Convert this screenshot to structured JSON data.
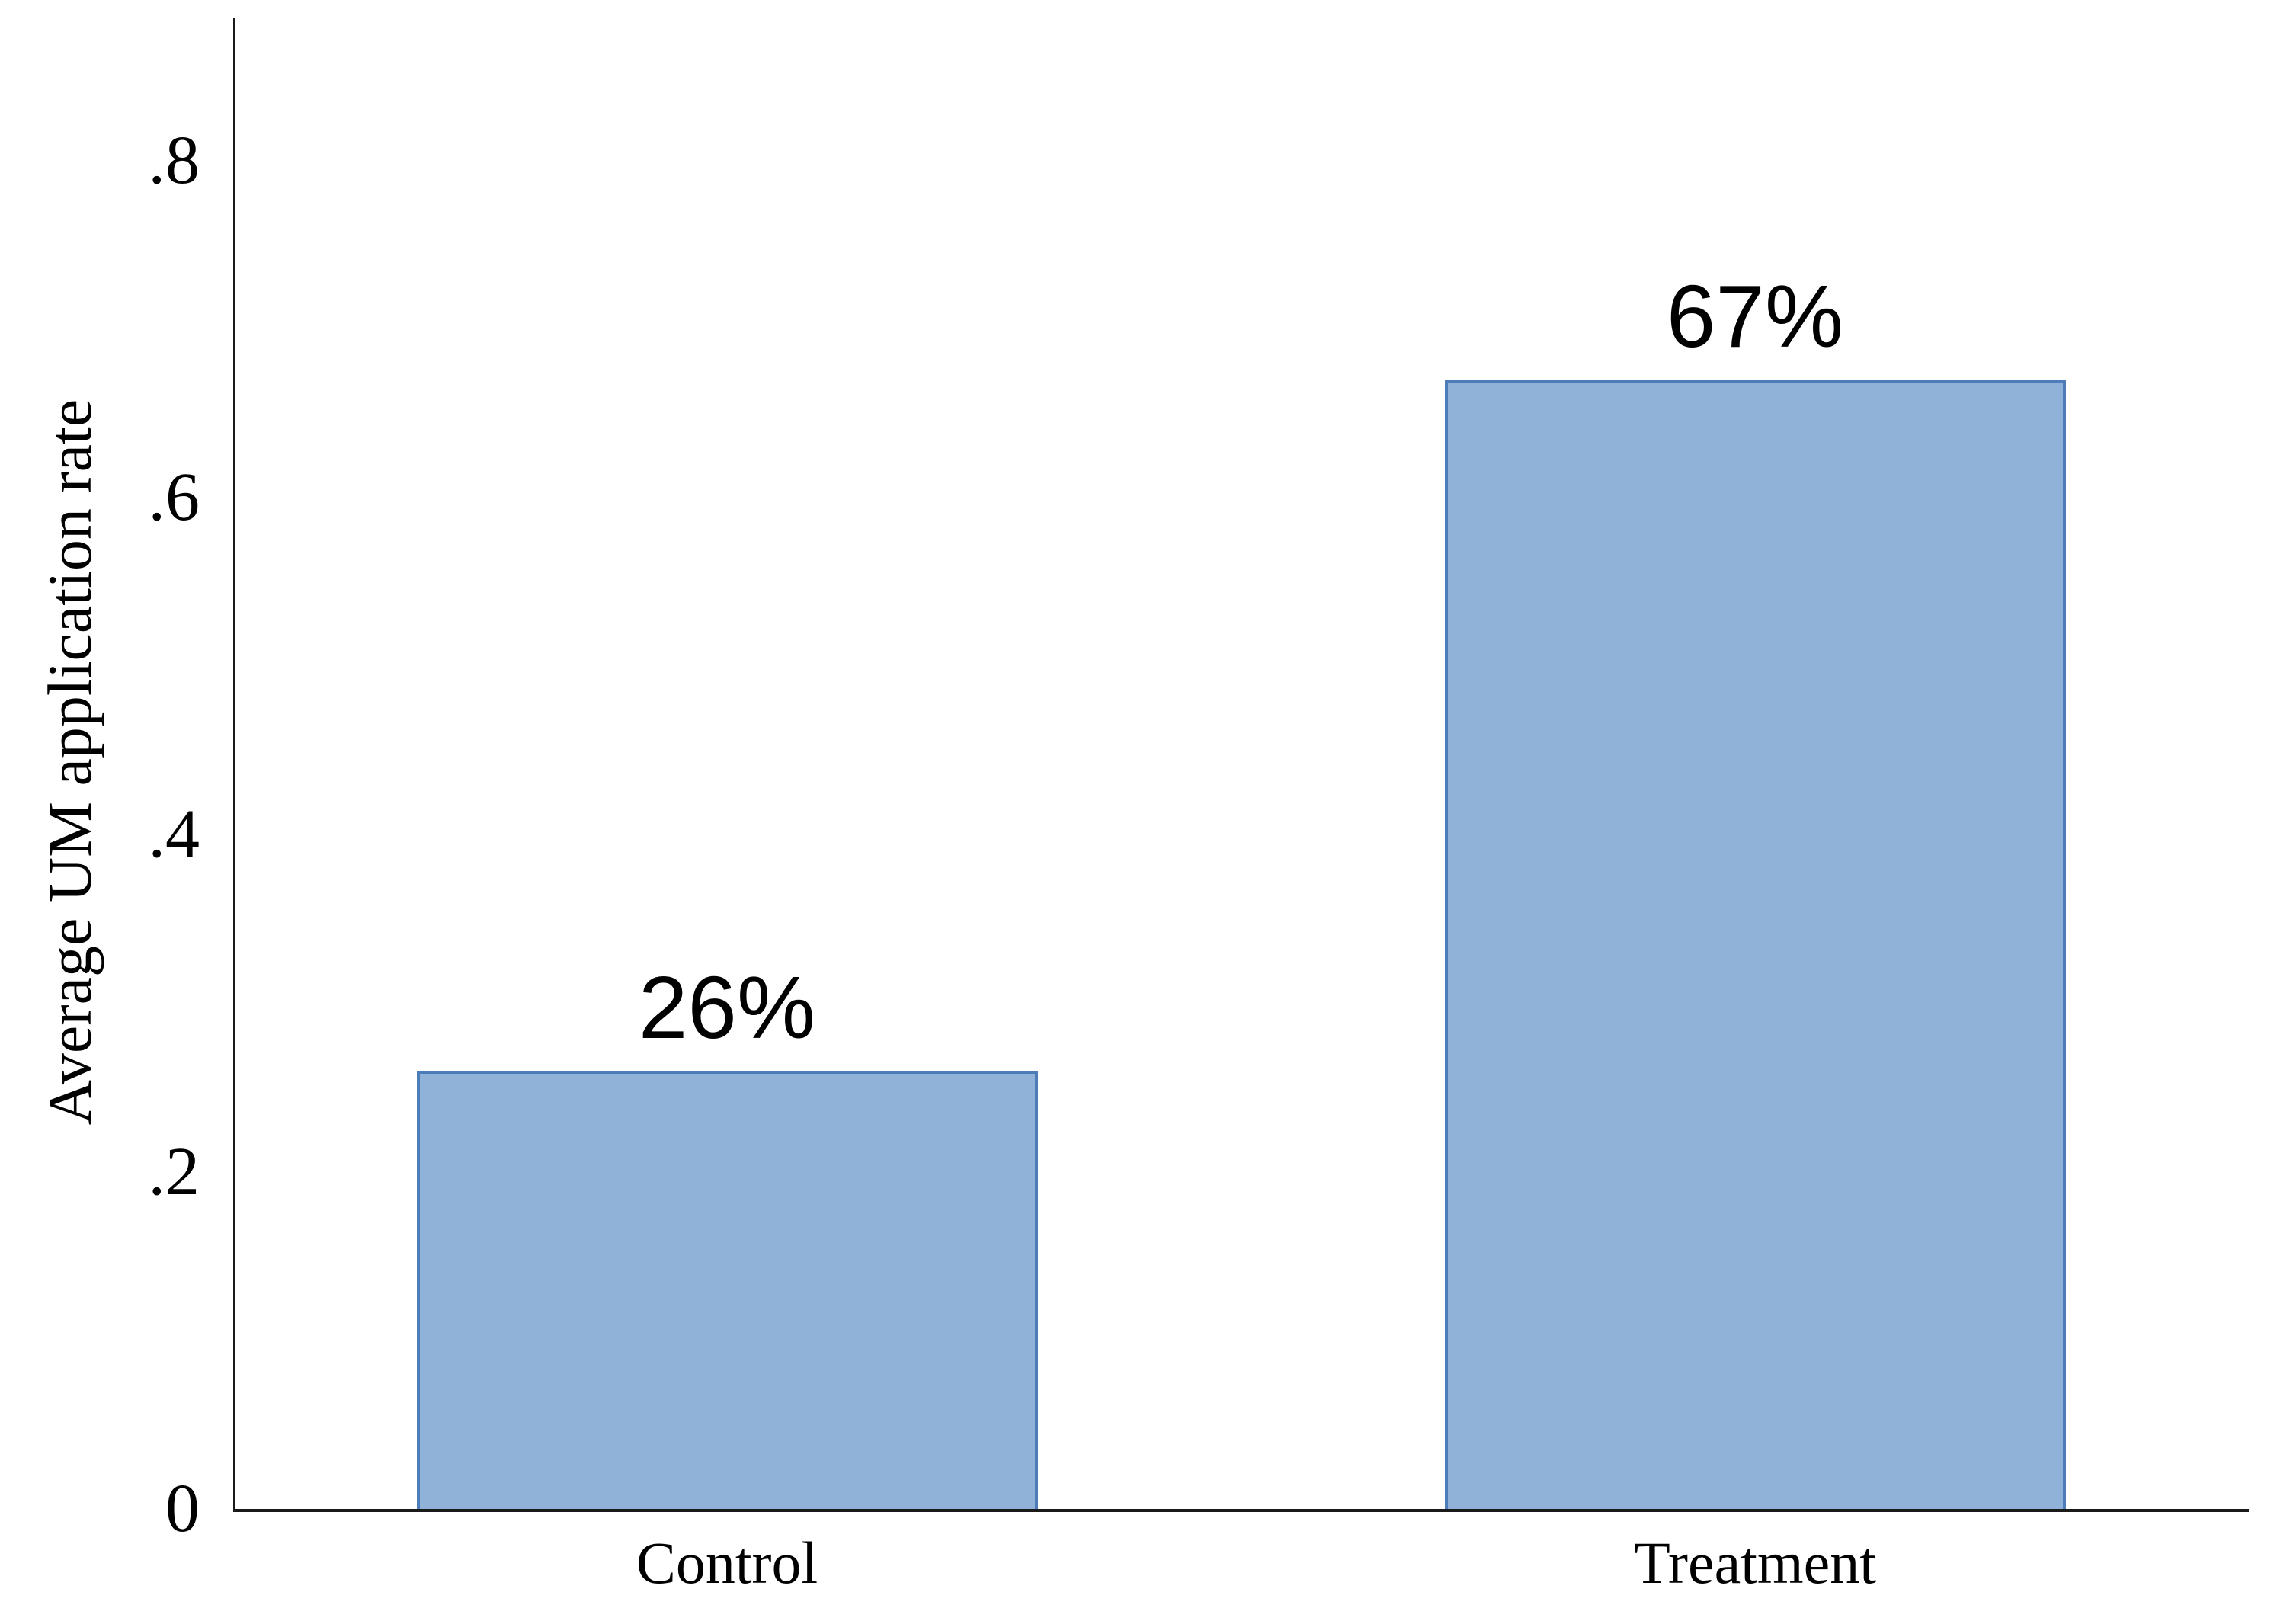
{
  "chart_data": {
    "type": "bar",
    "title": "",
    "xlabel": "",
    "ylabel": "Average UM application rate",
    "categories": [
      "Control",
      "Treatment"
    ],
    "values": [
      0.26,
      0.67
    ],
    "bar_labels": [
      "26%",
      "67%"
    ],
    "yticks": [
      {
        "value": 0,
        "label": "0"
      },
      {
        "value": 0.2,
        "label": ".2"
      },
      {
        "value": 0.4,
        "label": ".4"
      },
      {
        "value": 0.6,
        "label": ".6"
      },
      {
        "value": 0.8,
        "label": ".8"
      }
    ],
    "ylim": [
      0,
      0.885
    ],
    "grid": false,
    "legend": false,
    "colors": {
      "bar_fill": "#90B1D8",
      "bar_border": "#4C7DB9",
      "axis": "#1A1A1A",
      "text": "#000000",
      "background": "#FFFFFF"
    }
  }
}
